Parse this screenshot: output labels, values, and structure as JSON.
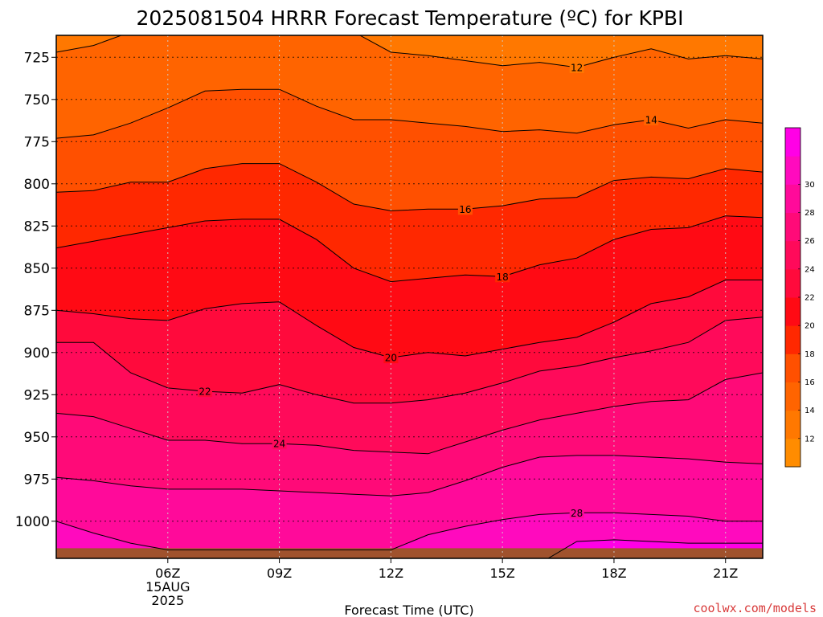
{
  "chart_data": {
    "type": "area",
    "title": "2025081504 HRRR Forecast Temperature (ºC) for KPBI",
    "xlabel": "Forecast Time (UTC)",
    "ylabel": "",
    "credit": "coolwx.com/models",
    "x_hours": [
      3,
      4,
      5,
      6,
      7,
      8,
      9,
      10,
      11,
      12,
      13,
      14,
      15,
      16,
      17,
      18,
      19,
      20,
      21,
      22
    ],
    "x_ticks": [
      {
        "hour": 6,
        "lines": [
          "06Z",
          "15AUG",
          "2025"
        ]
      },
      {
        "hour": 9,
        "lines": [
          "09Z"
        ]
      },
      {
        "hour": 12,
        "lines": [
          "12Z"
        ]
      },
      {
        "hour": 15,
        "lines": [
          "15Z"
        ]
      },
      {
        "hour": 18,
        "lines": [
          "18Z"
        ]
      },
      {
        "hour": 21,
        "lines": [
          "21Z"
        ]
      }
    ],
    "xlim": [
      3,
      22
    ],
    "ylim_hpa": [
      712,
      1022
    ],
    "y_ticks": [
      725,
      750,
      775,
      800,
      825,
      850,
      875,
      900,
      925,
      950,
      975,
      1000
    ],
    "surface_hpa": 1016,
    "levels": [
      12,
      14,
      16,
      18,
      20,
      22,
      24,
      26,
      28,
      30
    ],
    "colorbar": {
      "labels": [
        12,
        14,
        16,
        18,
        20,
        22,
        24,
        26,
        28,
        30
      ],
      "colors": [
        "#ff8c00",
        "#ff7800",
        "#ff6400",
        "#ff5000",
        "#ff2800",
        "#ff0a14",
        "#ff0a3c",
        "#ff0a5a",
        "#ff0a78",
        "#ff0a9a",
        "#ff0abe",
        "#ff00e6"
      ]
    },
    "isotherms": [
      {
        "temp": 12,
        "label": "12",
        "label_hour": 17,
        "hpa": [
          722,
          718,
          710,
          706,
          706,
          706,
          706,
          706,
          710,
          722,
          724,
          727,
          730,
          728,
          731,
          725,
          720,
          726,
          724,
          726
        ]
      },
      {
        "temp": 14,
        "label": "14",
        "label_hour": 19,
        "hpa": [
          773,
          771,
          764,
          755,
          745,
          744,
          744,
          754,
          762,
          762,
          764,
          766,
          769,
          768,
          770,
          765,
          762,
          767,
          762,
          764
        ]
      },
      {
        "temp": 16,
        "label": "16",
        "label_hour": 14,
        "hpa": [
          805,
          804,
          799,
          799,
          791,
          788,
          788,
          799,
          812,
          816,
          815,
          815,
          813,
          809,
          808,
          798,
          796,
          797,
          791,
          793
        ]
      },
      {
        "temp": 18,
        "label": "18",
        "label_hour": 15,
        "hpa": [
          838,
          834,
          830,
          826,
          822,
          821,
          821,
          833,
          850,
          858,
          856,
          854,
          855,
          848,
          844,
          833,
          827,
          826,
          819,
          820
        ]
      },
      {
        "temp": 20,
        "label": "20",
        "label_hour": 12,
        "hpa": [
          875,
          877,
          880,
          881,
          874,
          871,
          870,
          884,
          897,
          903,
          900,
          902,
          898,
          894,
          891,
          882,
          871,
          867,
          857,
          857
        ]
      },
      {
        "temp": 22,
        "label": "22",
        "label_hour": 7,
        "hpa": [
          894,
          894,
          912,
          921,
          923,
          924,
          919,
          925,
          930,
          930,
          928,
          924,
          918,
          911,
          908,
          903,
          899,
          894,
          881,
          879
        ]
      },
      {
        "temp": 24,
        "label": "24",
        "label_hour": 9,
        "hpa": [
          936,
          938,
          945,
          952,
          952,
          954,
          954,
          955,
          958,
          959,
          960,
          953,
          946,
          940,
          936,
          932,
          929,
          928,
          916,
          912
        ]
      },
      {
        "temp": 26,
        "label": "",
        "label_hour": 0,
        "hpa": [
          974,
          976,
          979,
          981,
          981,
          981,
          982,
          983,
          984,
          985,
          983,
          976,
          968,
          962,
          961,
          961,
          962,
          963,
          965,
          966
        ]
      },
      {
        "temp": 28,
        "label": "28",
        "label_hour": 17,
        "hpa": [
          1000,
          1007,
          1013,
          1017,
          1017,
          1017,
          1017,
          1017,
          1017,
          1017,
          1008,
          1003,
          999,
          996,
          995,
          995,
          996,
          997,
          1000,
          1000
        ]
      },
      {
        "temp": 30,
        "label": "",
        "label_hour": 0,
        "hpa": [
          1030,
          1030,
          1030,
          1030,
          1030,
          1030,
          1030,
          1030,
          1030,
          1030,
          1030,
          1030,
          1030,
          1025,
          1012,
          1011,
          1012,
          1013,
          1013,
          1013
        ]
      }
    ]
  }
}
